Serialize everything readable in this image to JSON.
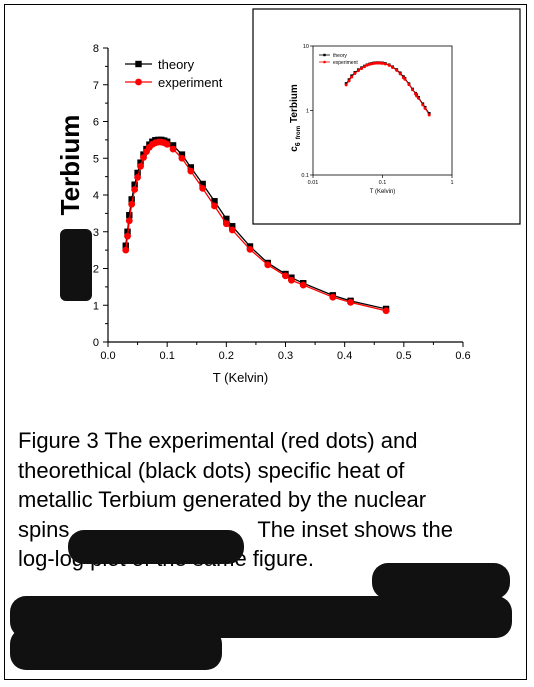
{
  "chart_data": [
    {
      "type": "line",
      "ylabel_visible": "Terbium",
      "xlabel": "T  (Kelvin)",
      "xlim": [
        0.0,
        0.6
      ],
      "ylim": [
        0,
        8
      ],
      "xticks": [
        "0.0",
        "0.1",
        "0.2",
        "0.3",
        "0.4",
        "0.5",
        "0.6"
      ],
      "yticks": [
        "0",
        "1",
        "2",
        "3",
        "4",
        "5",
        "6",
        "7",
        "8"
      ],
      "legend_position": "top-left",
      "series": [
        {
          "name": "theory",
          "color": "#000000",
          "marker": "square",
          "x": [
            0.03,
            0.033,
            0.036,
            0.04,
            0.045,
            0.05,
            0.055,
            0.06,
            0.065,
            0.07,
            0.075,
            0.08,
            0.085,
            0.09,
            0.095,
            0.1,
            0.11,
            0.125,
            0.14,
            0.16,
            0.18,
            0.2,
            0.21,
            0.24,
            0.27,
            0.3,
            0.31,
            0.33,
            0.38,
            0.41,
            0.47
          ],
          "y": [
            2.62,
            3.0,
            3.45,
            3.88,
            4.28,
            4.6,
            4.88,
            5.1,
            5.25,
            5.37,
            5.45,
            5.49,
            5.5,
            5.5,
            5.48,
            5.45,
            5.35,
            5.1,
            4.75,
            4.3,
            3.83,
            3.35,
            3.15,
            2.6,
            2.15,
            1.85,
            1.75,
            1.6,
            1.27,
            1.12,
            0.9
          ]
        },
        {
          "name": "experiment",
          "color": "#ff0000",
          "marker": "circle",
          "x": [
            0.03,
            0.033,
            0.036,
            0.04,
            0.045,
            0.05,
            0.055,
            0.06,
            0.065,
            0.07,
            0.075,
            0.08,
            0.085,
            0.09,
            0.095,
            0.1,
            0.11,
            0.125,
            0.14,
            0.16,
            0.18,
            0.2,
            0.21,
            0.24,
            0.27,
            0.3,
            0.31,
            0.33,
            0.38,
            0.41,
            0.47
          ],
          "y": [
            2.5,
            2.88,
            3.3,
            3.75,
            4.15,
            4.48,
            4.78,
            5.02,
            5.18,
            5.3,
            5.38,
            5.42,
            5.44,
            5.44,
            5.42,
            5.38,
            5.25,
            5.0,
            4.65,
            4.18,
            3.7,
            3.22,
            3.05,
            2.52,
            2.1,
            1.8,
            1.68,
            1.55,
            1.22,
            1.08,
            0.85
          ]
        }
      ]
    },
    {
      "type": "line",
      "role": "inset",
      "xscale": "log",
      "yscale": "log",
      "xlim": [
        0.01,
        1
      ],
      "ylim": [
        0.1,
        10
      ],
      "xticks": [
        "0.01",
        "0.1",
        "1"
      ],
      "yticks": [
        "0.1",
        "1",
        "10"
      ],
      "xlabel": "T  (Kelvin)",
      "ylabel": "c",
      "ylabel_sub": "6",
      "ylabel_sub2": "from",
      "ylabel_rest": "Terbium",
      "legend_position": "top-left",
      "series": [
        {
          "name": "theory",
          "color": "#000000",
          "marker": "square",
          "x": [
            0.03,
            0.033,
            0.036,
            0.04,
            0.045,
            0.05,
            0.055,
            0.06,
            0.065,
            0.07,
            0.075,
            0.08,
            0.085,
            0.09,
            0.095,
            0.1,
            0.11,
            0.125,
            0.14,
            0.16,
            0.18,
            0.2,
            0.21,
            0.24,
            0.27,
            0.3,
            0.31,
            0.33,
            0.38,
            0.41,
            0.47
          ],
          "y": [
            2.62,
            3.0,
            3.45,
            3.88,
            4.28,
            4.6,
            4.88,
            5.1,
            5.25,
            5.37,
            5.45,
            5.49,
            5.5,
            5.5,
            5.48,
            5.45,
            5.35,
            5.1,
            4.75,
            4.3,
            3.83,
            3.35,
            3.15,
            2.6,
            2.15,
            1.85,
            1.75,
            1.6,
            1.27,
            1.12,
            0.9
          ]
        },
        {
          "name": "experiment",
          "color": "#ff0000",
          "marker": "circle",
          "x": [
            0.03,
            0.033,
            0.036,
            0.04,
            0.045,
            0.05,
            0.055,
            0.06,
            0.065,
            0.07,
            0.075,
            0.08,
            0.085,
            0.09,
            0.095,
            0.1,
            0.11,
            0.125,
            0.14,
            0.16,
            0.18,
            0.2,
            0.21,
            0.24,
            0.27,
            0.3,
            0.31,
            0.33,
            0.38,
            0.41,
            0.47
          ],
          "y": [
            2.5,
            2.88,
            3.3,
            3.75,
            4.15,
            4.48,
            4.78,
            5.02,
            5.18,
            5.3,
            5.38,
            5.42,
            5.44,
            5.44,
            5.42,
            5.38,
            5.25,
            5.0,
            4.65,
            4.18,
            3.7,
            3.22,
            3.05,
            2.52,
            2.1,
            1.8,
            1.68,
            1.55,
            1.22,
            1.08,
            0.85
          ]
        }
      ]
    }
  ],
  "caption": {
    "line1": "Figure 3   The experimental (red dots) and",
    "line2": "theorethical (black dots) specific heat of",
    "line3": "metallic Terbium generated by the nuclear",
    "line4_start": "spins",
    "line4_end": "The inset shows the",
    "line5": "log-log plot of the same figure."
  }
}
